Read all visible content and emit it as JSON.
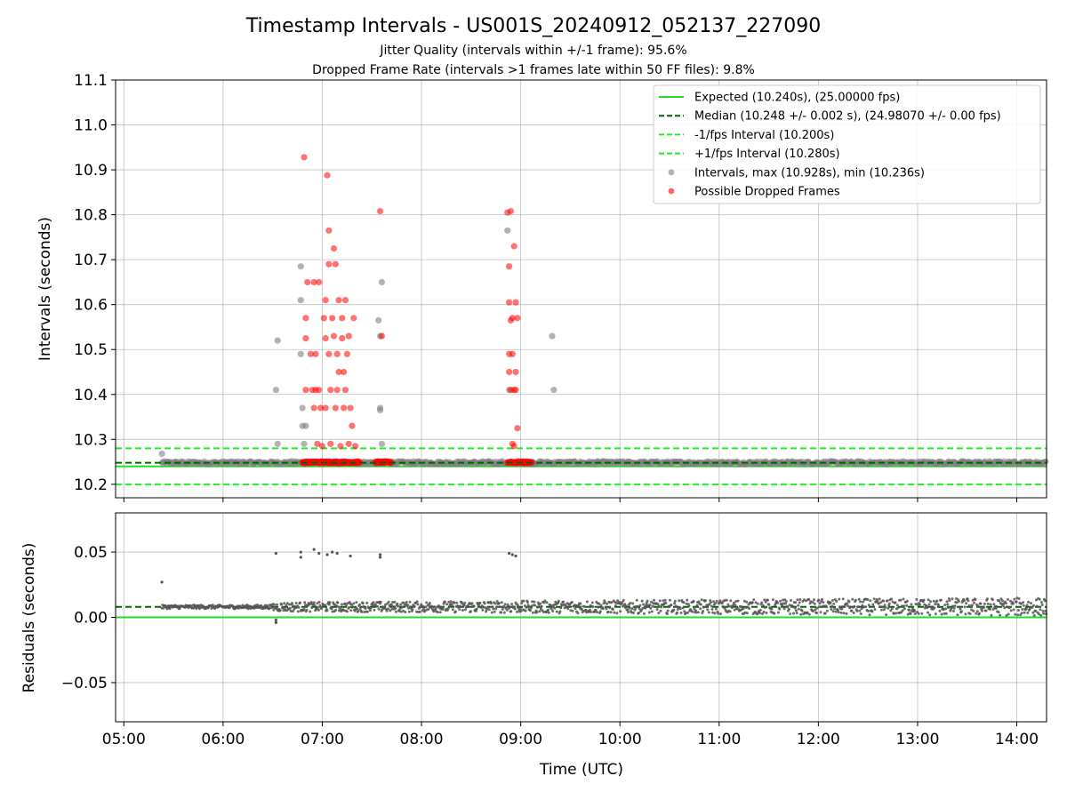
{
  "chart_data": {
    "type": "scatter",
    "title": "Timestamp Intervals - US001S_20240912_052137_227090",
    "subtitle1": "Jitter Quality (intervals within +/-1 frame): 95.6%",
    "subtitle2": "Dropped Frame Rate (intervals >1 frames late within 50 FF files): 9.8%",
    "xlabel": "Time (UTC)",
    "x_tick_labels": [
      "05:00",
      "06:00",
      "07:00",
      "08:00",
      "09:00",
      "10:00",
      "11:00",
      "12:00",
      "13:00",
      "14:00"
    ],
    "x_range": [
      "04:55",
      "14:18"
    ],
    "top_panel": {
      "ylabel": "Intervals (seconds)",
      "ylim": [
        10.17,
        11.1
      ],
      "y_ticks": [
        "10.2",
        "10.3",
        "10.4",
        "10.5",
        "10.6",
        "10.7",
        "10.8",
        "10.9",
        "11.0",
        "11.1"
      ],
      "grid": true,
      "expected": 10.24,
      "median": 10.248,
      "minus_interval": 10.2,
      "plus_interval": 10.28,
      "legend_position": "top-right",
      "legend": [
        {
          "label": "Expected (10.240s), (25.00000 fps)",
          "style": "solid",
          "color": "#22dd22"
        },
        {
          "label": "Median (10.248 +/- 0.002 s), (24.98070 +/- 0.00 fps)",
          "style": "dashed",
          "color": "#006400"
        },
        {
          "label": "-1/fps Interval (10.200s)",
          "style": "dashed",
          "color": "#22ee22"
        },
        {
          "label": "+1/fps Interval (10.280s)",
          "style": "dashed",
          "color": "#22ee22"
        },
        {
          "label": "Intervals, max (10.928s), min (10.236s)",
          "style": "marker",
          "color": "#808080"
        },
        {
          "label": "Possible Dropped Frames",
          "style": "marker",
          "color": "#ff0000"
        }
      ],
      "baseline_band": {
        "start": "05:23",
        "end": "14:18",
        "center": 10.248,
        "spread": 0.004
      },
      "intervals_outliers": [
        [
          "05:23",
          10.268
        ],
        [
          "06:32",
          10.41
        ],
        [
          "06:33",
          10.52
        ],
        [
          "06:33",
          10.29
        ],
        [
          "06:47",
          10.685
        ],
        [
          "06:47",
          10.61
        ],
        [
          "06:47",
          10.49
        ],
        [
          "06:48",
          10.37
        ],
        [
          "06:48",
          10.33
        ],
        [
          "06:49",
          10.29
        ],
        [
          "06:50",
          10.33
        ],
        [
          "07:34",
          10.565
        ],
        [
          "07:35",
          10.53
        ],
        [
          "07:35",
          10.365
        ],
        [
          "07:35",
          10.37
        ],
        [
          "07:36",
          10.65
        ],
        [
          "07:36",
          10.29
        ],
        [
          "08:52",
          10.765
        ],
        [
          "08:53",
          10.41
        ],
        [
          "09:19",
          10.53
        ],
        [
          "09:20",
          10.41
        ]
      ],
      "dropped_frames": [
        [
          "06:49",
          10.928
        ],
        [
          "06:50",
          10.57
        ],
        [
          "06:50",
          10.525
        ],
        [
          "06:50",
          10.41
        ],
        [
          "06:51",
          10.65
        ],
        [
          "06:53",
          10.49
        ],
        [
          "06:54",
          10.41
        ],
        [
          "06:55",
          10.65
        ],
        [
          "06:55",
          10.37
        ],
        [
          "06:56",
          10.49
        ],
        [
          "06:56",
          10.41
        ],
        [
          "06:57",
          10.29
        ],
        [
          "06:58",
          10.65
        ],
        [
          "06:58",
          10.41
        ],
        [
          "06:59",
          10.37
        ],
        [
          "07:00",
          10.285
        ],
        [
          "07:01",
          10.57
        ],
        [
          "07:02",
          10.61
        ],
        [
          "07:02",
          10.525
        ],
        [
          "07:02",
          10.37
        ],
        [
          "07:03",
          10.888
        ],
        [
          "07:04",
          10.765
        ],
        [
          "07:04",
          10.69
        ],
        [
          "07:04",
          10.49
        ],
        [
          "07:05",
          10.41
        ],
        [
          "07:05",
          10.29
        ],
        [
          "07:06",
          10.57
        ],
        [
          "07:07",
          10.725
        ],
        [
          "07:07",
          10.53
        ],
        [
          "07:08",
          10.69
        ],
        [
          "07:08",
          10.37
        ],
        [
          "07:09",
          10.49
        ],
        [
          "07:09",
          10.41
        ],
        [
          "07:10",
          10.61
        ],
        [
          "07:10",
          10.45
        ],
        [
          "07:11",
          10.285
        ],
        [
          "07:12",
          10.57
        ],
        [
          "07:12",
          10.525
        ],
        [
          "07:13",
          10.45
        ],
        [
          "07:13",
          10.37
        ],
        [
          "07:14",
          10.61
        ],
        [
          "07:14",
          10.41
        ],
        [
          "07:15",
          10.49
        ],
        [
          "07:16",
          10.53
        ],
        [
          "07:16",
          10.29
        ],
        [
          "07:17",
          10.37
        ],
        [
          "07:18",
          10.33
        ],
        [
          "07:19",
          10.57
        ],
        [
          "07:20",
          10.285
        ],
        [
          "07:35",
          10.808
        ],
        [
          "07:36",
          10.53
        ],
        [
          "08:52",
          10.805
        ],
        [
          "08:53",
          10.685
        ],
        [
          "08:53",
          10.605
        ],
        [
          "08:53",
          10.49
        ],
        [
          "08:53",
          10.45
        ],
        [
          "08:54",
          10.808
        ],
        [
          "08:54",
          10.565
        ],
        [
          "08:54",
          10.41
        ],
        [
          "08:55",
          10.57
        ],
        [
          "08:55",
          10.49
        ],
        [
          "08:55",
          10.29
        ],
        [
          "08:56",
          10.73
        ],
        [
          "08:56",
          10.41
        ],
        [
          "08:56",
          10.285
        ],
        [
          "08:57",
          10.605
        ],
        [
          "08:57",
          10.45
        ],
        [
          "08:57",
          10.41
        ],
        [
          "08:58",
          10.57
        ],
        [
          "08:58",
          10.325
        ]
      ],
      "dropped_baseline_runs": [
        [
          "06:48",
          "07:23"
        ],
        [
          "07:32",
          "07:42"
        ],
        [
          "08:52",
          "09:07"
        ]
      ]
    },
    "bottom_panel": {
      "ylabel": "Residuals (seconds)",
      "ylim": [
        -0.08,
        0.08
      ],
      "y_ticks": [
        "0.00",
        "0.05",
        "−0.05"
      ],
      "grid": true,
      "expected": 0.0,
      "median": 0.008,
      "residual_outliers": [
        [
          "05:23",
          0.027
        ],
        [
          "06:32",
          0.049
        ],
        [
          "06:32",
          -0.004
        ],
        [
          "06:32",
          -0.002
        ],
        [
          "06:47",
          0.05
        ],
        [
          "06:47",
          0.046
        ],
        [
          "06:55",
          0.052
        ],
        [
          "06:58",
          0.049
        ],
        [
          "07:03",
          0.048
        ],
        [
          "07:06",
          0.05
        ],
        [
          "07:09",
          0.049
        ],
        [
          "07:17",
          0.047
        ],
        [
          "07:35",
          0.048
        ],
        [
          "07:35",
          0.046
        ],
        [
          "08:53",
          0.049
        ],
        [
          "08:55",
          0.048
        ],
        [
          "08:57",
          0.047
        ]
      ]
    }
  }
}
